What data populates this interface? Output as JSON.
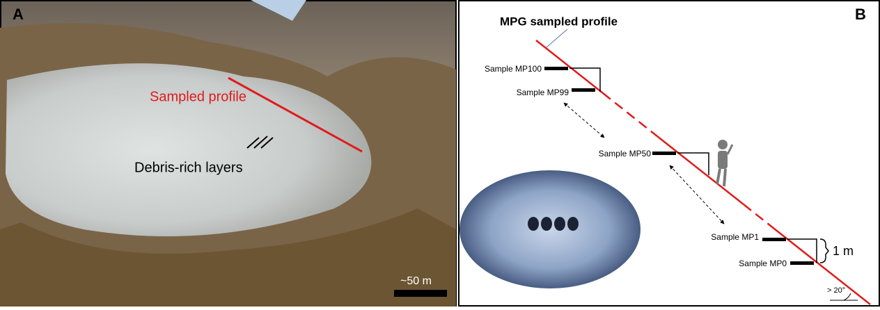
{
  "panel_a": {
    "label": "A",
    "profile": "Sampled profile",
    "layers": "Debris-rich layers",
    "scale": "~50 m"
  },
  "panel_b": {
    "label": "B",
    "title": "MPG sampled profile",
    "samples": [
      "Sample MP100",
      "Sample MP99",
      "Sample MP50",
      "Sample MP1",
      "Sample MP0"
    ],
    "height": "1 m",
    "angle": "> 20°"
  }
}
